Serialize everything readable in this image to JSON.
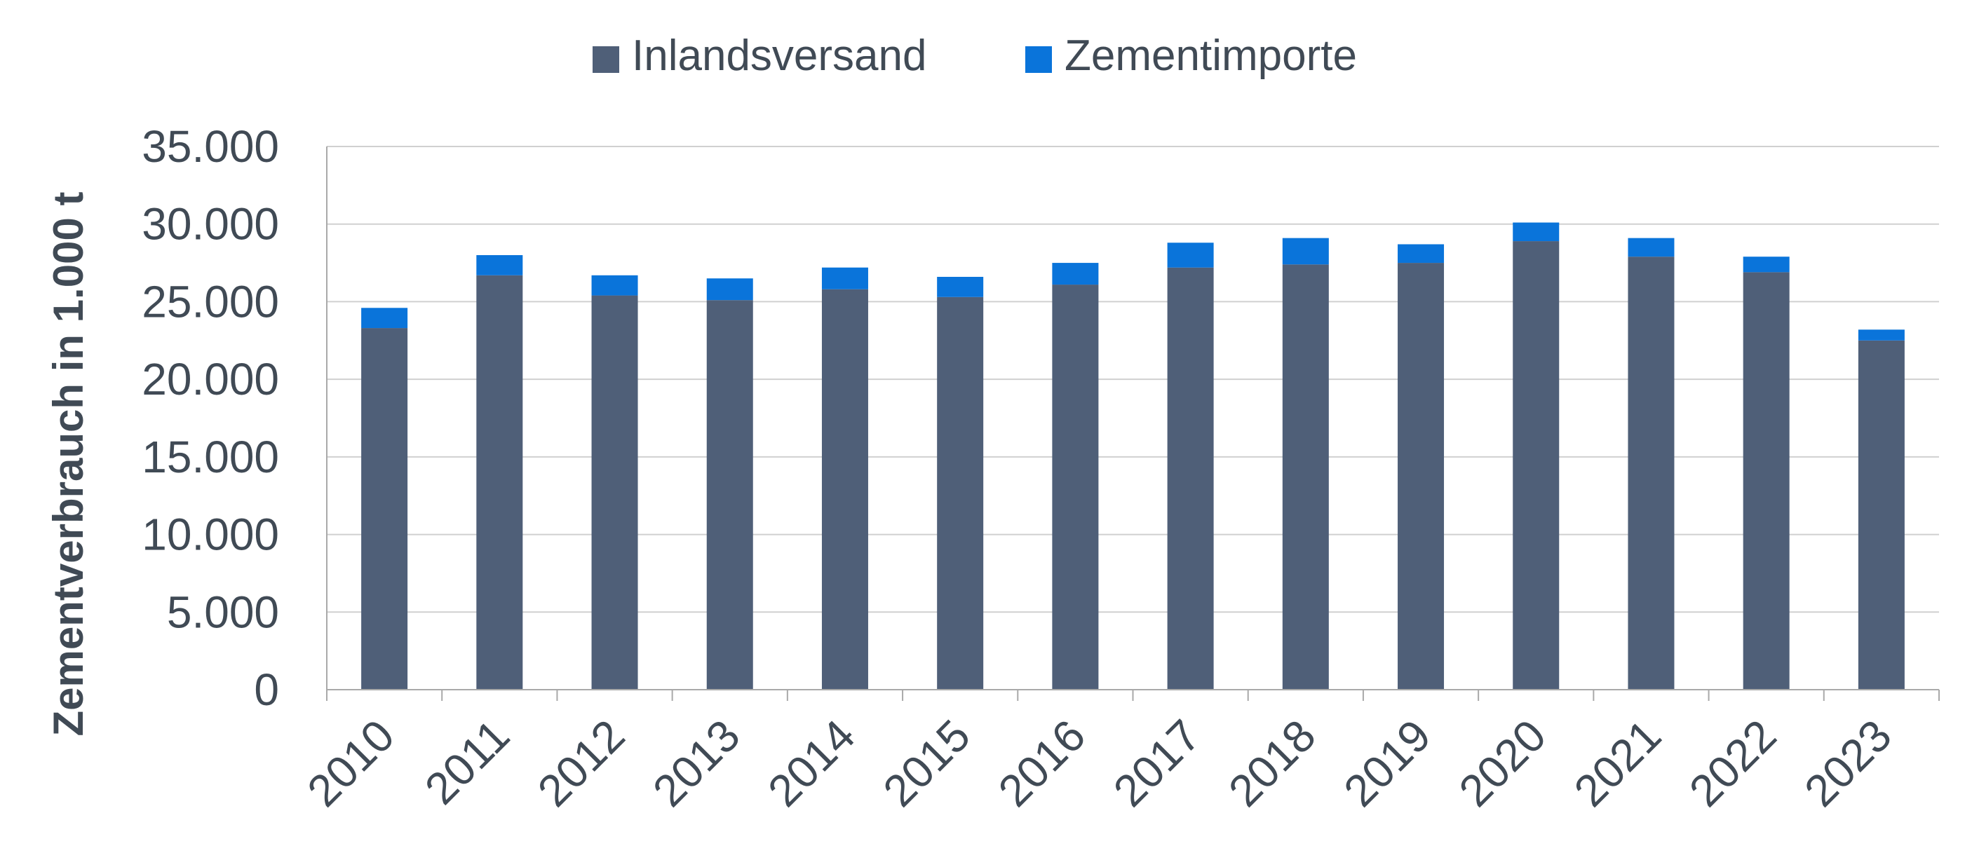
{
  "chart_data": {
    "type": "bar",
    "stacked": true,
    "categories": [
      "2010",
      "2011",
      "2012",
      "2013",
      "2014",
      "2015",
      "2016",
      "2017",
      "2018",
      "2019",
      "2020",
      "2021",
      "2022",
      "2023"
    ],
    "series": [
      {
        "name": "Inlandsversand",
        "color": "#4f5f78",
        "values": [
          23300,
          26700,
          25400,
          25100,
          25800,
          25300,
          26100,
          27200,
          27400,
          27500,
          28900,
          27900,
          26900,
          22500
        ]
      },
      {
        "name": "Zementimporte",
        "color": "#0a74da",
        "values": [
          1300,
          1300,
          1300,
          1400,
          1400,
          1300,
          1400,
          1600,
          1700,
          1200,
          1200,
          1200,
          1000,
          700
        ]
      }
    ],
    "ylabel": "Zementverbrauch in 1.000 t",
    "ylim": [
      0,
      35000
    ],
    "yticks": [
      "0",
      "5.000",
      "10.000",
      "15.000",
      "20.000",
      "25.000",
      "30.000",
      "35.000"
    ],
    "grid": true,
    "legend_position": "top-center"
  }
}
